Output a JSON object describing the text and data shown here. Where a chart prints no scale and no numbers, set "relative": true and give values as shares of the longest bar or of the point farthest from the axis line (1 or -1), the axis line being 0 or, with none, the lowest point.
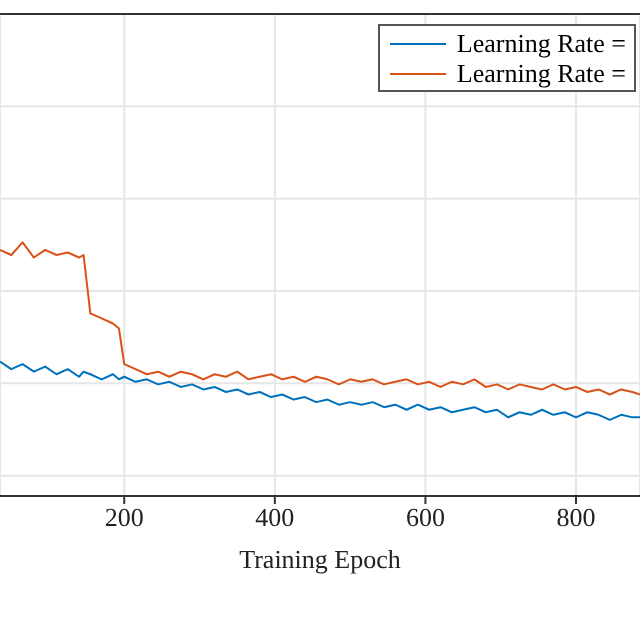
{
  "chart_data": {
    "type": "line",
    "xlabel": "Training Epoch",
    "relative": true,
    "xlim": [
      35,
      885
    ],
    "xticks": [
      200,
      400,
      600,
      800
    ],
    "grid": true,
    "legend": "top right",
    "marker": "none",
    "line_style": "solid",
    "x": [
      35,
      50,
      65,
      80,
      95,
      110,
      125,
      140,
      146,
      155,
      170,
      185,
      193,
      200,
      215,
      230,
      245,
      260,
      275,
      290,
      305,
      320,
      335,
      350,
      365,
      380,
      395,
      410,
      425,
      440,
      455,
      470,
      485,
      500,
      515,
      530,
      545,
      560,
      575,
      590,
      605,
      620,
      635,
      650,
      665,
      680,
      695,
      710,
      725,
      740,
      755,
      770,
      785,
      800,
      815,
      830,
      845,
      860,
      875,
      885
    ],
    "series": [
      {
        "name": "Learning Rate =",
        "color": "#0072bd",
        "values": [
          0.53,
          0.5,
          0.52,
          0.49,
          0.51,
          0.48,
          0.5,
          0.47,
          0.49,
          0.48,
          0.46,
          0.48,
          0.46,
          0.47,
          0.45,
          0.46,
          0.44,
          0.45,
          0.43,
          0.44,
          0.42,
          0.43,
          0.41,
          0.42,
          0.4,
          0.41,
          0.39,
          0.4,
          0.38,
          0.39,
          0.37,
          0.38,
          0.36,
          0.37,
          0.36,
          0.37,
          0.35,
          0.36,
          0.34,
          0.36,
          0.34,
          0.35,
          0.33,
          0.34,
          0.35,
          0.33,
          0.34,
          0.31,
          0.33,
          0.32,
          0.34,
          0.32,
          0.33,
          0.31,
          0.33,
          0.32,
          0.3,
          0.32,
          0.31,
          0.31
        ]
      },
      {
        "name": "Learning Rate =",
        "color": "#d95319",
        "values": [
          0.97,
          0.95,
          1.0,
          0.94,
          0.97,
          0.95,
          0.96,
          0.94,
          0.95,
          0.72,
          0.7,
          0.68,
          0.66,
          0.52,
          0.5,
          0.48,
          0.49,
          0.47,
          0.49,
          0.48,
          0.46,
          0.48,
          0.47,
          0.49,
          0.46,
          0.47,
          0.48,
          0.46,
          0.47,
          0.45,
          0.47,
          0.46,
          0.44,
          0.46,
          0.45,
          0.46,
          0.44,
          0.45,
          0.46,
          0.44,
          0.45,
          0.43,
          0.45,
          0.44,
          0.46,
          0.43,
          0.44,
          0.42,
          0.44,
          0.43,
          0.42,
          0.44,
          0.42,
          0.43,
          0.41,
          0.42,
          0.4,
          0.42,
          0.41,
          0.4
        ]
      }
    ]
  }
}
